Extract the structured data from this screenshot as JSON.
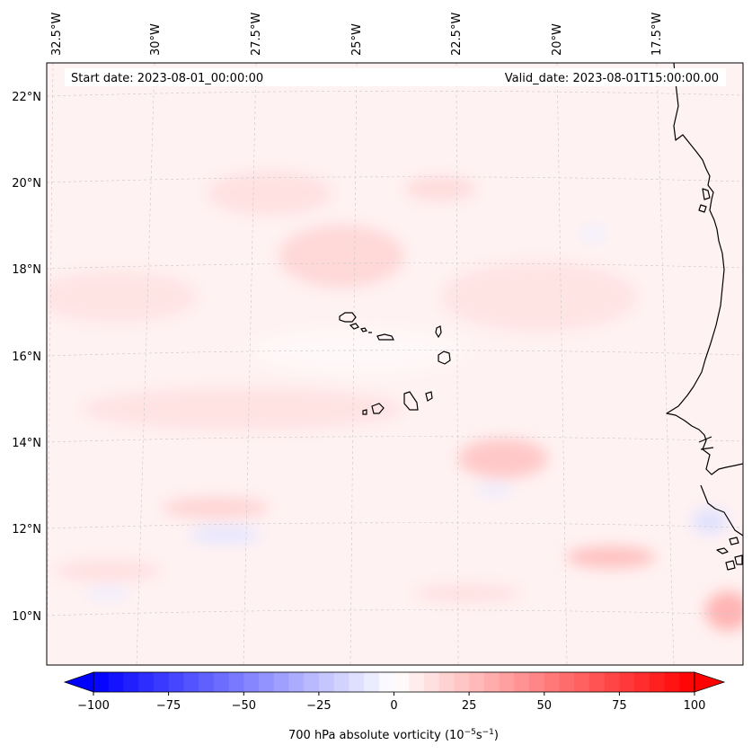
{
  "header": {
    "start_date": "Start date: 2023-08-01_00:00:00",
    "valid_date": "Valid_date: 2023-08-01T15:00:00.00"
  },
  "longitude_labels": [
    "32.5°W",
    "30°W",
    "27.5°W",
    "25°W",
    "22.5°W",
    "20°W",
    "17.5°W"
  ],
  "latitude_labels": [
    "22°N",
    "20°N",
    "18°N",
    "16°N",
    "14°N",
    "12°N",
    "10°N"
  ],
  "colorbar": {
    "ticks": [
      "−100",
      "−75",
      "−50",
      "−25",
      "0",
      "25",
      "50",
      "75",
      "100"
    ],
    "range": [
      -100,
      100
    ],
    "step": 5,
    "label_text": "700 hPa absolute vorticity (10",
    "label_sup1": "−5",
    "label_mid": "s",
    "label_sup2": "−1",
    "label_end": ")",
    "colors": {
      "low": "#0000ff",
      "mid": "#ffffff",
      "high": "#ff0000"
    }
  },
  "colors": {
    "coastline": "#000000",
    "gridline": "#c8c8c8"
  }
}
